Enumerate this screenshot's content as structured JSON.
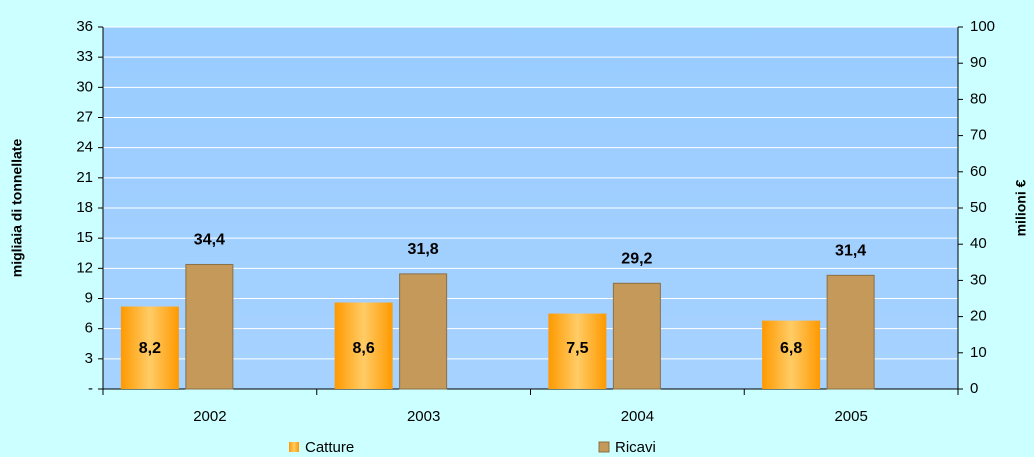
{
  "chart_data": {
    "type": "bar",
    "categories": [
      "2002",
      "2003",
      "2004",
      "2005"
    ],
    "series": [
      {
        "name": "Catture",
        "color": "#ff9900",
        "values": [
          8.2,
          8.6,
          7.5,
          6.8
        ],
        "value_labels": [
          "8,2",
          "8,6",
          "7,5",
          "6,8"
        ]
      },
      {
        "name": "Ricavi",
        "color": "#c4995a",
        "axis": "y2",
        "values": [
          34.4,
          31.8,
          29.2,
          31.4
        ],
        "value_labels": [
          "34,4",
          "31,8",
          "29,2",
          "31,4"
        ]
      }
    ],
    "ylabel": "migliaia di tonnellate",
    "y2label": "milioni €",
    "ylim": [
      0,
      36
    ],
    "yticks": [
      {
        "value": 0,
        "label": "-"
      },
      3,
      6,
      9,
      12,
      15,
      18,
      21,
      24,
      27,
      30,
      33,
      36
    ],
    "y2lim": [
      0,
      100
    ],
    "y2ticks": [
      0,
      10,
      20,
      30,
      40,
      50,
      60,
      70,
      80,
      90,
      100
    ],
    "grid": true,
    "legend": "bottom"
  }
}
